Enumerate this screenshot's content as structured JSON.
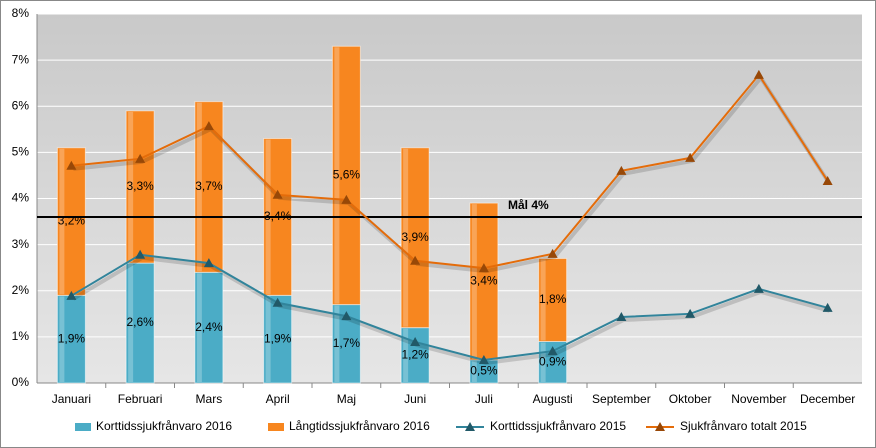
{
  "chart_data": {
    "type": "bar-line",
    "categories": [
      "Januari",
      "Februari",
      "Mars",
      "April",
      "Maj",
      "Juni",
      "Juli",
      "Augusti",
      "September",
      "Oktober",
      "November",
      "December"
    ],
    "series": [
      {
        "name": "Korttidssjukfrånvaro 2016",
        "kind": "bar",
        "color": "#4bacc6",
        "values": [
          1.9,
          2.6,
          2.4,
          1.9,
          1.7,
          1.2,
          0.5,
          0.9,
          null,
          null,
          null,
          null
        ],
        "value_labels": [
          "1,9%",
          "2,6%",
          "2,4%",
          "1,9%",
          "1,7%",
          "1,2%",
          "0,5%",
          "0,9%",
          null,
          null,
          null,
          null
        ]
      },
      {
        "name": "Långtidssjukfrånvaro 2016",
        "kind": "bar",
        "color": "#f7861f",
        "values": [
          3.2,
          3.3,
          3.7,
          3.4,
          5.6,
          3.9,
          3.4,
          1.8,
          null,
          null,
          null,
          null
        ],
        "value_labels": [
          "3,2%",
          "3,3%",
          "3,7%",
          "3,4%",
          "5,6%",
          "3,9%",
          "3,4%",
          "1,8%",
          null,
          null,
          null,
          null
        ]
      },
      {
        "name": "Korttidssjukfrånvaro 2015",
        "kind": "line",
        "color": "#31849b",
        "marker_color": "#215968",
        "values": [
          1.89,
          2.78,
          2.6,
          1.74,
          1.45,
          0.89,
          0.5,
          0.69,
          1.43,
          1.5,
          2.04,
          1.63
        ]
      },
      {
        "name": "Sjukfrånvaro totalt 2015",
        "kind": "line",
        "color": "#e46c0a",
        "marker_color": "#984807",
        "values": [
          4.71,
          4.86,
          5.57,
          4.08,
          3.97,
          2.65,
          2.49,
          2.8,
          4.6,
          4.88,
          6.68,
          4.38
        ]
      }
    ],
    "ylim": [
      0,
      8
    ],
    "yticks": [
      {
        "value": 0,
        "label": "0%"
      },
      {
        "value": 1,
        "label": "1%"
      },
      {
        "value": 2,
        "label": "2%"
      },
      {
        "value": 3,
        "label": "3%"
      },
      {
        "value": 4,
        "label": "4%"
      },
      {
        "value": 5,
        "label": "5%"
      },
      {
        "value": 6,
        "label": "6%"
      },
      {
        "value": 7,
        "label": "7%"
      },
      {
        "value": 8,
        "label": "8%"
      }
    ],
    "grid": true,
    "target_line": {
      "value": 3.6,
      "color": "#000000"
    },
    "annotation": "Mål 4%",
    "legend": "bottom"
  }
}
